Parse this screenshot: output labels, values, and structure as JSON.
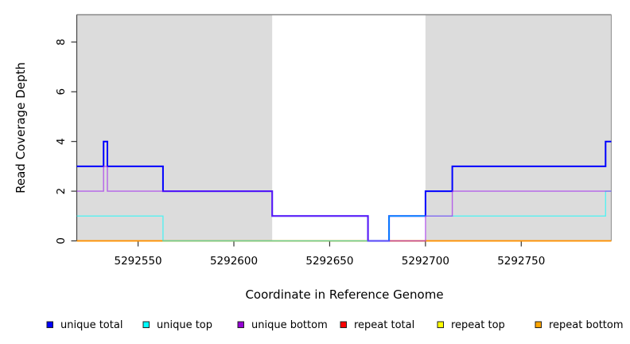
{
  "figure": {
    "background": "#FFFFFF"
  },
  "chart_data": {
    "type": "step-line",
    "title": "",
    "xlabel": "Coordinate in Reference Genome",
    "ylabel": "Read Coverage Depth",
    "x_domain": [
      5292518,
      5292797
    ],
    "y_domain": [
      0,
      9.1
    ],
    "x_ticks": [
      5292550,
      5292600,
      5292650,
      5292700,
      5292750
    ],
    "y_ticks": [
      0,
      2,
      4,
      6,
      8
    ],
    "grid": "off",
    "legend_position": "bottom",
    "shade_color": "#DCDCDC",
    "shaded_regions": [
      {
        "from": 5292518,
        "to": 5292620
      },
      {
        "from": 5292700,
        "to": 5292797
      }
    ],
    "series": [
      {
        "name": "repeat total",
        "color": "#DD0000",
        "steps": [
          [
            5292518,
            0
          ]
        ]
      },
      {
        "name": "repeat top",
        "color": "#FFFF00",
        "steps": [
          [
            5292518,
            0
          ]
        ]
      },
      {
        "name": "repeat bottom",
        "color": "#FF8C00",
        "steps": [
          [
            5292518,
            0
          ]
        ]
      },
      {
        "name": "unique total",
        "color": "#0000FF",
        "steps": [
          [
            5292518,
            3
          ],
          [
            5292532,
            4
          ],
          [
            5292534,
            3
          ],
          [
            5292563,
            2
          ],
          [
            5292620,
            1
          ],
          [
            5292670,
            0
          ],
          [
            5292681,
            1
          ],
          [
            5292700,
            2
          ],
          [
            5292714,
            3
          ],
          [
            5292794,
            4
          ]
        ]
      },
      {
        "name": "unique top",
        "color": "#00FFFF",
        "steps": [
          [
            5292518,
            1
          ],
          [
            5292563,
            0
          ],
          [
            5292681,
            1
          ],
          [
            5292794,
            2
          ]
        ]
      },
      {
        "name": "unique bottom",
        "color": "#A020F0",
        "steps": [
          [
            5292518,
            2
          ],
          [
            5292532,
            3
          ],
          [
            5292534,
            2
          ],
          [
            5292620,
            1
          ],
          [
            5292670,
            0
          ],
          [
            5292700,
            1
          ],
          [
            5292714,
            2
          ]
        ]
      }
    ],
    "legend": [
      {
        "label": "unique total",
        "color": "#0000FF"
      },
      {
        "label": "unique top",
        "color": "#00FFFF"
      },
      {
        "label": "unique bottom",
        "color": "#9400D3"
      },
      {
        "label": "repeat total",
        "color": "#FF0000"
      },
      {
        "label": "repeat top",
        "color": "#FFFF00"
      },
      {
        "label": "repeat bottom",
        "color": "#FFA500"
      }
    ]
  }
}
